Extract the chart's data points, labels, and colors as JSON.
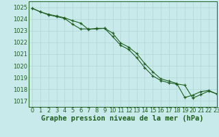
{
  "title": "Graphe pression niveau de la mer (hPa)",
  "background_color": "#c8eaea",
  "grid_color": "#b0d4d4",
  "line_color": "#1e5e1e",
  "xlim": [
    -0.5,
    23
  ],
  "ylim": [
    1016.5,
    1025.5
  ],
  "yticks": [
    1017,
    1018,
    1019,
    1020,
    1021,
    1022,
    1023,
    1024,
    1025
  ],
  "xticks": [
    0,
    1,
    2,
    3,
    4,
    5,
    6,
    7,
    8,
    9,
    10,
    11,
    12,
    13,
    14,
    15,
    16,
    17,
    18,
    19,
    20,
    21,
    22,
    23
  ],
  "series1_x": [
    0,
    1,
    2,
    3,
    4,
    5,
    6,
    7,
    8,
    9,
    10,
    11,
    12,
    13,
    14,
    15,
    16,
    17,
    18,
    19,
    20,
    21,
    22,
    23
  ],
  "series1_y": [
    1024.9,
    1024.6,
    1024.35,
    1024.2,
    1024.05,
    1023.55,
    1023.15,
    1023.15,
    1023.15,
    1023.2,
    1022.5,
    1021.75,
    1021.4,
    1020.7,
    1019.85,
    1019.15,
    1018.75,
    1018.55,
    1018.45,
    1018.35,
    1017.25,
    1017.55,
    1017.85,
    1017.6
  ],
  "series2_x": [
    0,
    1,
    2,
    3,
    4,
    5,
    6,
    7,
    8,
    9,
    10,
    11,
    12,
    13,
    14,
    15,
    16,
    17,
    18,
    19,
    20,
    21,
    22,
    23
  ],
  "series2_y": [
    1024.9,
    1024.6,
    1024.4,
    1024.25,
    1024.1,
    1023.85,
    1023.65,
    1023.1,
    1023.2,
    1023.2,
    1022.8,
    1021.95,
    1021.6,
    1021.05,
    1020.2,
    1019.5,
    1018.9,
    1018.7,
    1018.5,
    1017.3,
    1017.5,
    1017.8,
    1017.9,
    1017.6
  ],
  "title_fontsize": 7.5,
  "tick_fontsize": 6
}
